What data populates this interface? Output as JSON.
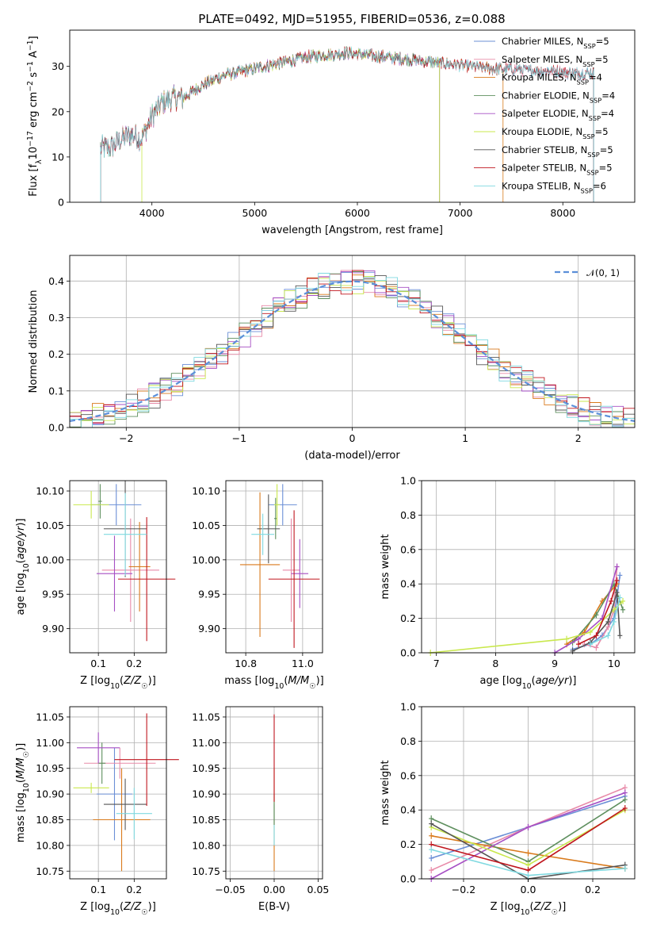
{
  "figure": {
    "title": "PLATE=0492, MJD=51955, FIBERID=0536, z=0.088"
  },
  "colors": {
    "chabrier_miles": "#6b8fd6",
    "salpeter_miles": "#e88aa8",
    "kroupa_miles": "#d97a1c",
    "chabrier_elodie": "#5e8f5e",
    "salpeter_elodie": "#a64fc4",
    "kroupa_elodie": "#c9e84d",
    "chabrier_stelib": "#555555",
    "salpeter_stelib": "#c0161e",
    "kroupa_stelib": "#7fd9e0",
    "normal_curve": "#5b8fd9",
    "grid": "#b0b0b0"
  },
  "chart_data": [
    {
      "id": "spectrum",
      "type": "line",
      "title": "PLATE=0492, MJD=51955, FIBERID=0536, z=0.088",
      "xlabel": "wavelength [Angstrom, rest frame]",
      "ylabel": "Flux [f_λ 10^-17 erg cm^-2 s^-1 A^-1]",
      "xlim": [
        3200,
        8700
      ],
      "ylim": [
        0,
        38
      ],
      "xticks": [
        4000,
        5000,
        6000,
        7000,
        8000
      ],
      "yticks": [
        0,
        10,
        20,
        30
      ],
      "grid": false,
      "legend_position": "top-right",
      "approx_continuum": {
        "x": [
          3500,
          3600,
          3700,
          3800,
          3900,
          4000,
          4100,
          4200,
          4300,
          4500,
          4700,
          4900,
          5100,
          5300,
          5500,
          5700,
          5900,
          6100,
          6300,
          6500,
          6700,
          6900,
          7100,
          7300,
          7500,
          7700,
          7900,
          8100,
          8300
        ],
        "y": [
          12,
          12,
          14,
          15,
          14,
          19,
          22,
          23,
          23,
          26,
          28,
          29,
          30,
          31,
          32,
          32.5,
          33,
          32.5,
          32,
          31.5,
          31,
          30.5,
          30,
          29.5,
          29.5,
          29,
          29,
          28.5,
          28.5
        ]
      },
      "series": [
        {
          "name": "Chabrier MILES, N_SSP=5",
          "legend": "Chabrier MILES, N",
          "n_ssp": 5,
          "color": "#6b8fd6",
          "x_range": [
            3500,
            8300
          ]
        },
        {
          "name": "Salpeter MILES, N_SSP=5",
          "legend": "Salpeter MILES, N",
          "n_ssp": 5,
          "color": "#e88aa8",
          "x_range": [
            3500,
            8300
          ]
        },
        {
          "name": "Kroupa MILES, N_SSP=4",
          "legend": "Kroupa MILES, N",
          "n_ssp": 4,
          "color": "#d97a1c",
          "x_range": [
            3500,
            7420
          ]
        },
        {
          "name": "Chabrier ELODIE, N_SSP=4",
          "legend": "Chabrier ELODIE, N",
          "n_ssp": 4,
          "color": "#5e8f5e",
          "x_range": [
            3500,
            6800
          ]
        },
        {
          "name": "Salpeter ELODIE, N_SSP=4",
          "legend": "Salpeter ELODIE, N",
          "n_ssp": 4,
          "color": "#a64fc4",
          "x_range": [
            3500,
            6800
          ]
        },
        {
          "name": "Kroupa ELODIE, N_SSP=5",
          "legend": "Kroupa ELODIE, N",
          "n_ssp": 5,
          "color": "#c9e84d",
          "x_range": [
            3900,
            6800
          ]
        },
        {
          "name": "Chabrier STELIB, N_SSP=5",
          "legend": "Chabrier STELIB, N",
          "n_ssp": 5,
          "color": "#555555",
          "x_range": [
            3500,
            8300
          ]
        },
        {
          "name": "Salpeter STELIB, N_SSP=5",
          "legend": "Salpeter STELIB, N",
          "n_ssp": 5,
          "color": "#c0161e",
          "x_range": [
            3500,
            8300
          ]
        },
        {
          "name": "Kroupa STELIB, N_SSP=6",
          "legend": "Kroupa STELIB, N",
          "n_ssp": 6,
          "color": "#7fd9e0",
          "x_range": [
            3500,
            8300
          ]
        }
      ],
      "legend_subscript": "SSP"
    },
    {
      "id": "residuals",
      "type": "histogram",
      "xlabel": "(data-model)/error",
      "ylabel": "Normed distribution",
      "xlim": [
        -2.5,
        2.5
      ],
      "ylim": [
        0,
        0.47
      ],
      "xticks": [
        -2,
        -1,
        0,
        1,
        2
      ],
      "yticks": [
        0.0,
        0.1,
        0.2,
        0.3,
        0.4
      ],
      "grid": true,
      "legend_position": "top-right",
      "legend": [
        "𝒩(0, 1)"
      ],
      "bin_width": 0.1,
      "reference_curve": "normal(0,1)"
    },
    {
      "id": "age_vs_Z",
      "type": "errorbar",
      "xlabel": "Z [log10(Z/Z☉)]",
      "ylabel": "age [log10(age/yr)]",
      "xlim": [
        0.02,
        0.29
      ],
      "ylim": [
        9.865,
        10.115
      ],
      "xticks": [
        0.1,
        0.2
      ],
      "yticks": [
        9.9,
        9.95,
        10.0,
        10.05,
        10.1
      ],
      "grid": true,
      "points": [
        {
          "series": "Chabrier MILES",
          "x": 0.15,
          "xerr": 0.07,
          "y": 10.08,
          "yerr": 0.03
        },
        {
          "series": "Salpeter MILES",
          "x": 0.19,
          "xerr": 0.08,
          "y": 9.985,
          "yerr": 0.075
        },
        {
          "series": "Kroupa MILES",
          "x": 0.215,
          "xerr": 0.03,
          "y": 9.99,
          "yerr": 0.065
        },
        {
          "series": "Chabrier ELODIE",
          "x": 0.105,
          "xerr": 0.005,
          "y": 10.085,
          "yerr": 0.025
        },
        {
          "series": "Salpeter ELODIE",
          "x": 0.145,
          "xerr": 0.05,
          "y": 9.98,
          "yerr": 0.055
        },
        {
          "series": "Kroupa ELODIE",
          "x": 0.08,
          "xerr": 0.05,
          "y": 10.08,
          "yerr": 0.02
        },
        {
          "series": "Chabrier STELIB",
          "x": 0.175,
          "xerr": 0.06,
          "y": 10.045,
          "yerr": 0.07
        },
        {
          "series": "Salpeter STELIB",
          "x": 0.235,
          "xerr": 0.08,
          "y": 9.972,
          "yerr": 0.09
        },
        {
          "series": "Kroupa STELIB",
          "x": 0.175,
          "xerr": 0.06,
          "y": 10.037,
          "yerr": 0.06
        }
      ]
    },
    {
      "id": "age_vs_mass",
      "type": "errorbar",
      "xlabel": "mass [log10(M/M☉)]",
      "ylabel": "",
      "xlim": [
        10.73,
        11.07
      ],
      "ylim": [
        9.865,
        10.115
      ],
      "xticks": [
        10.8,
        11.0
      ],
      "yticks": [
        9.9,
        9.95,
        10.0,
        10.05,
        10.1
      ],
      "grid": true,
      "points": [
        {
          "series": "Chabrier MILES",
          "x": 10.93,
          "xerr": 0.05,
          "y": 10.08,
          "yerr": 0.03
        },
        {
          "series": "Salpeter MILES",
          "x": 10.96,
          "xerr": 0.03,
          "y": 9.985,
          "yerr": 0.075
        },
        {
          "series": "Kroupa MILES",
          "x": 10.85,
          "xerr": 0.07,
          "y": 9.993,
          "yerr": 0.105
        },
        {
          "series": "Chabrier ELODIE",
          "x": 10.905,
          "xerr": 0.005,
          "y": 10.06,
          "yerr": 0.03
        },
        {
          "series": "Salpeter ELODIE",
          "x": 10.99,
          "xerr": 0.03,
          "y": 9.98,
          "yerr": 0.05
        },
        {
          "series": "Kroupa ELODIE",
          "x": 10.91,
          "xerr": 0.01,
          "y": 10.08,
          "yerr": 0.03
        },
        {
          "series": "Chabrier STELIB",
          "x": 10.88,
          "xerr": 0.04,
          "y": 10.045,
          "yerr": 0.05
        },
        {
          "series": "Salpeter STELIB",
          "x": 10.97,
          "xerr": 0.09,
          "y": 9.972,
          "yerr": 0.1
        },
        {
          "series": "Kroupa STELIB",
          "x": 10.86,
          "xerr": 0.04,
          "y": 10.037,
          "yerr": 0.03
        }
      ]
    },
    {
      "id": "massweight_vs_age",
      "type": "line",
      "xlabel": "age [log10(age/yr)]",
      "ylabel": "mass weight",
      "xlim": [
        6.75,
        10.35
      ],
      "ylim": [
        0.0,
        1.0
      ],
      "xticks": [
        7,
        8,
        9,
        10
      ],
      "yticks": [
        0.0,
        0.2,
        0.4,
        0.6,
        0.8,
        1.0
      ],
      "grid": true,
      "series": [
        {
          "name": "Chabrier MILES",
          "x": [
            9.3,
            9.6,
            9.8,
            10.0,
            10.1
          ],
          "y": [
            0.02,
            0.05,
            0.1,
            0.2,
            0.45
          ]
        },
        {
          "name": "Salpeter MILES",
          "x": [
            9.5,
            9.7,
            9.9,
            10.0,
            10.05
          ],
          "y": [
            0.05,
            0.03,
            0.15,
            0.25,
            0.5
          ]
        },
        {
          "name": "Kroupa MILES",
          "x": [
            9.2,
            9.5,
            9.8,
            10.05
          ],
          "y": [
            0.05,
            0.12,
            0.3,
            0.4
          ]
        },
        {
          "name": "Chabrier ELODIE",
          "x": [
            9.3,
            9.7,
            10.0,
            10.15
          ],
          "y": [
            0.06,
            0.22,
            0.4,
            0.25
          ]
        },
        {
          "name": "Salpeter ELODIE",
          "x": [
            9.0,
            9.4,
            9.8,
            10.05
          ],
          "y": [
            0.0,
            0.08,
            0.2,
            0.5
          ]
        },
        {
          "name": "Kroupa ELODIE",
          "x": [
            6.9,
            9.2,
            9.6,
            10.0,
            10.15
          ],
          "y": [
            0.0,
            0.08,
            0.12,
            0.25,
            0.3
          ]
        },
        {
          "name": "Chabrier STELIB",
          "x": [
            9.3,
            9.6,
            9.9,
            10.05,
            10.1
          ],
          "y": [
            0.01,
            0.06,
            0.18,
            0.35,
            0.1
          ]
        },
        {
          "name": "Salpeter STELIB",
          "x": [
            9.4,
            9.7,
            9.95,
            10.05
          ],
          "y": [
            0.05,
            0.1,
            0.3,
            0.42
          ]
        },
        {
          "name": "Kroupa STELIB",
          "x": [
            9.6,
            9.9,
            10.0,
            10.1
          ],
          "y": [
            0.05,
            0.1,
            0.18,
            0.32
          ]
        }
      ]
    },
    {
      "id": "mass_vs_Z",
      "type": "errorbar",
      "xlabel": "Z [log10(Z/Z☉)]",
      "ylabel": "mass [log10(M/M☉)]",
      "xlim": [
        0.02,
        0.29
      ],
      "ylim": [
        10.735,
        11.07
      ],
      "xticks": [
        0.1,
        0.2
      ],
      "yticks": [
        10.75,
        10.8,
        10.85,
        10.9,
        10.95,
        11.0,
        11.05
      ],
      "grid": true,
      "points": [
        {
          "series": "Chabrier MILES",
          "x": 0.145,
          "xerr": 0.05,
          "y": 10.9,
          "yerr": 0.09
        },
        {
          "series": "Salpeter MILES",
          "x": 0.16,
          "xerr": 0.1,
          "y": 10.96,
          "yerr": 0.03
        },
        {
          "series": "Kroupa MILES",
          "x": 0.165,
          "xerr": 0.08,
          "y": 10.85,
          "yerr": 0.1
        },
        {
          "series": "Chabrier ELODIE",
          "x": 0.11,
          "xerr": 0.01,
          "y": 10.96,
          "yerr": 0.04
        },
        {
          "series": "Salpeter ELODIE",
          "x": 0.1,
          "xerr": 0.06,
          "y": 10.99,
          "yerr": 0.03
        },
        {
          "series": "Kroupa ELODIE",
          "x": 0.08,
          "xerr": 0.05,
          "y": 10.912,
          "yerr": 0.01
        },
        {
          "series": "Chabrier STELIB",
          "x": 0.175,
          "xerr": 0.06,
          "y": 10.88,
          "yerr": 0.05
        },
        {
          "series": "Salpeter STELIB",
          "x": 0.235,
          "xerr": 0.09,
          "y": 10.967,
          "yerr": 0.09
        },
        {
          "series": "Kroupa STELIB",
          "x": 0.2,
          "xerr": 0.05,
          "y": 10.862,
          "yerr": 0.05
        }
      ]
    },
    {
      "id": "mass_vs_EBV",
      "type": "errorbar",
      "xlabel": "E(B-V)",
      "ylabel": "",
      "xlim": [
        -0.055,
        0.055
      ],
      "ylim": [
        10.735,
        11.07
      ],
      "xticks": [
        -0.05,
        0.0,
        0.05
      ],
      "xtick_labels": [
        "−0.05",
        "0.00",
        "0.05"
      ],
      "yticks": [
        10.75,
        10.8,
        10.85,
        10.9,
        10.95,
        11.0,
        11.05
      ],
      "grid": true,
      "points": [
        {
          "series": "Kroupa MILES",
          "x": 0.0,
          "y": 10.85,
          "yerr": 0.1
        },
        {
          "series": "Kroupa STELIB",
          "x": 0.0,
          "y": 10.84,
          "yerr": 0.04
        },
        {
          "series": "Chabrier ELODIE",
          "x": 0.0,
          "y": 10.87,
          "yerr": 0.03
        },
        {
          "series": "Salpeter STELIB",
          "x": 0.0,
          "y": 10.97,
          "yerr": 0.085
        }
      ]
    },
    {
      "id": "massweight_vs_Z",
      "type": "line",
      "xlabel": "Z [log10(Z/Z☉)]",
      "ylabel": "mass weight",
      "xlim": [
        -0.33,
        0.33
      ],
      "ylim": [
        0.0,
        1.0
      ],
      "xticks": [
        -0.2,
        0.0,
        0.2
      ],
      "xtick_labels": [
        "−0.2",
        "0.0",
        "0.2"
      ],
      "yticks": [
        0.0,
        0.2,
        0.4,
        0.6,
        0.8,
        1.0
      ],
      "grid": true,
      "series": [
        {
          "name": "Chabrier MILES",
          "x": [
            -0.3,
            0.0,
            0.3
          ],
          "y": [
            0.12,
            0.3,
            0.48
          ]
        },
        {
          "name": "Salpeter MILES",
          "x": [
            -0.3,
            0.0,
            0.3
          ],
          "y": [
            0.05,
            0.3,
            0.53
          ]
        },
        {
          "name": "Kroupa MILES",
          "x": [
            -0.3,
            0.0,
            0.3
          ],
          "y": [
            0.25,
            0.15,
            0.06
          ]
        },
        {
          "name": "Chabrier ELODIE",
          "x": [
            -0.3,
            0.0,
            0.3
          ],
          "y": [
            0.35,
            0.1,
            0.46
          ]
        },
        {
          "name": "Salpeter ELODIE",
          "x": [
            -0.3,
            0.0,
            0.3
          ],
          "y": [
            0.0,
            0.3,
            0.5
          ]
        },
        {
          "name": "Kroupa ELODIE",
          "x": [
            -0.3,
            0.0,
            0.3
          ],
          "y": [
            0.3,
            0.08,
            0.4
          ]
        },
        {
          "name": "Chabrier STELIB",
          "x": [
            -0.3,
            0.0,
            0.3
          ],
          "y": [
            0.32,
            0.0,
            0.08
          ]
        },
        {
          "name": "Salpeter STELIB",
          "x": [
            -0.3,
            0.0,
            0.3
          ],
          "y": [
            0.2,
            0.05,
            0.41
          ]
        },
        {
          "name": "Kroupa STELIB",
          "x": [
            -0.3,
            0.0,
            0.3
          ],
          "y": [
            0.17,
            0.02,
            0.06
          ]
        }
      ]
    }
  ]
}
